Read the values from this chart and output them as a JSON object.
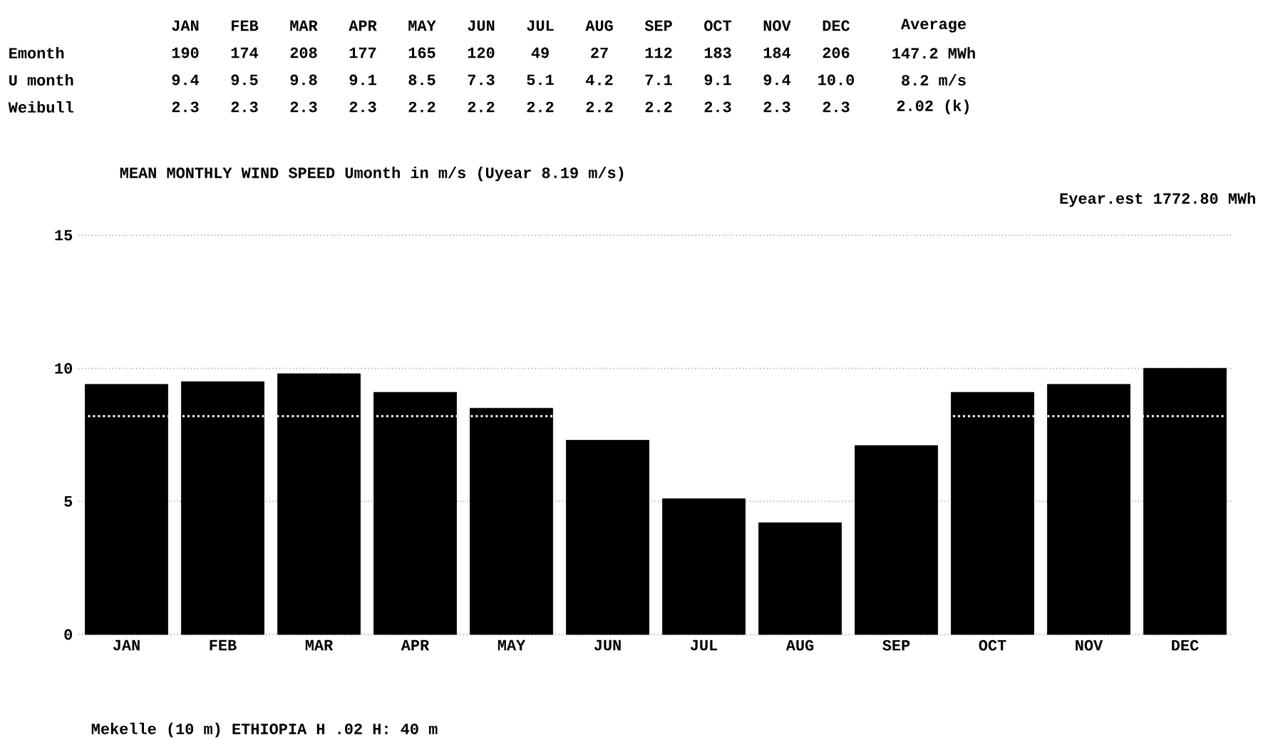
{
  "chart_data": {
    "type": "bar",
    "title": "MEAN MONTHLY WIND SPEED Umonth in m/s  (Uyear  8.19 m/s)",
    "subtitle": "Eyear.est  1772.80 MWh",
    "categories": [
      "JAN",
      "FEB",
      "MAR",
      "APR",
      "MAY",
      "JUN",
      "JUL",
      "AUG",
      "SEP",
      "OCT",
      "NOV",
      "DEC"
    ],
    "values": [
      9.4,
      9.5,
      9.8,
      9.1,
      8.5,
      7.3,
      5.1,
      4.2,
      7.1,
      9.1,
      9.4,
      10.0
    ],
    "color": "#000000",
    "ylim": [
      0,
      15
    ],
    "yticks": [
      0,
      5,
      10,
      15
    ],
    "grid": "y",
    "ref_lines": [
      {
        "axis": "y",
        "value": 8.2,
        "color": "#ffffff",
        "line_style": "dotted"
      }
    ],
    "annotations": [
      "JAN",
      "FEB",
      "MAR",
      "APR",
      "MAY",
      "JUN",
      "JUL",
      "AUG",
      "SEP",
      "OCT",
      "NOV",
      "DEC",
      "Average",
      "Emonth",
      "190",
      "174",
      "208",
      "177",
      "165",
      "120",
      "49",
      "27",
      "112",
      "183",
      "184",
      "206",
      "147.2 MWh",
      "U month",
      "9.4",
      "9.5",
      "9.8",
      "9.1",
      "8.5",
      "7.3",
      "5.1",
      "4.2",
      "7.1",
      "9.1",
      "9.4",
      "10.0",
      "8.2 m/s",
      "Weibull",
      "2.3",
      "2.3",
      "2.3",
      "2.3",
      "2.2",
      "2.2",
      "2.2",
      "2.2",
      "2.2",
      "2.3",
      "2.3",
      "2.3",
      "2.02 (k)",
      "Mekelle (10 m) ETHIOPIA   H .02   H: 40 m"
    ]
  }
}
